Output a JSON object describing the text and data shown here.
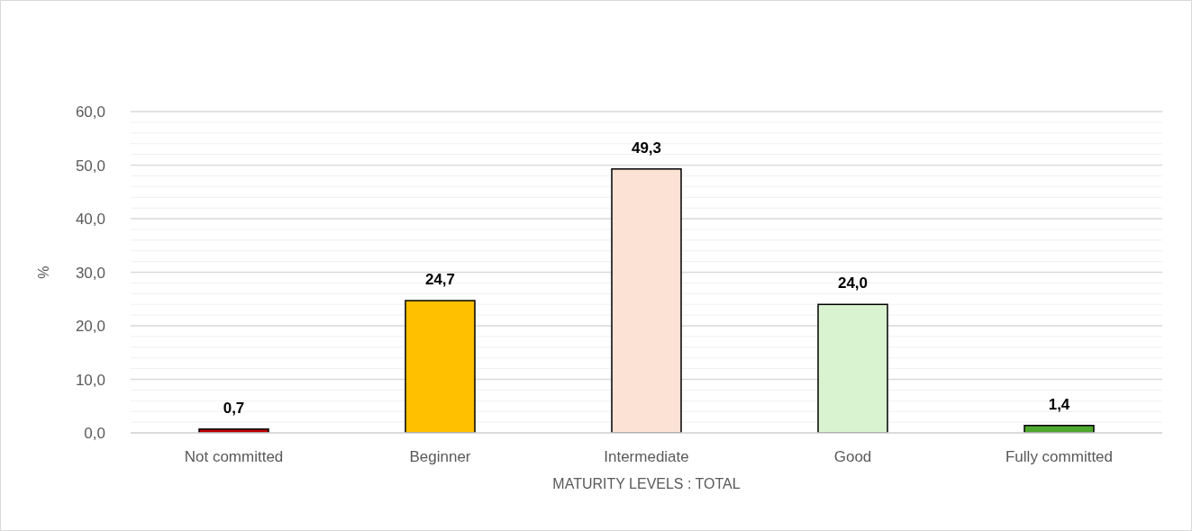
{
  "chart_data": {
    "type": "bar",
    "xlabel": "MATURITY LEVELS : TOTAL",
    "ylabel": "%",
    "categories": [
      "Not committed",
      "Beginner",
      "Intermediate",
      "Good",
      "Fully committed"
    ],
    "values": [
      0.7,
      24.7,
      49.3,
      24.0,
      1.4
    ],
    "colors": [
      "#c00000",
      "#ffc000",
      "#fbe2d5",
      "#d9f2d0",
      "#4ea72e"
    ],
    "value_labels": [
      "0,7",
      "24,7",
      "49,3",
      "24,0",
      "1,4"
    ],
    "ylim": [
      0,
      60
    ],
    "yticks": [
      {
        "value": 0,
        "label": "0,0"
      },
      {
        "value": 10,
        "label": "10,0"
      },
      {
        "value": 20,
        "label": "20,0"
      },
      {
        "value": 30,
        "label": "30,0"
      },
      {
        "value": 40,
        "label": "40,0"
      },
      {
        "value": 50,
        "label": "50,0"
      },
      {
        "value": 60,
        "label": "60,0"
      }
    ],
    "grid": "y",
    "legend": false
  }
}
